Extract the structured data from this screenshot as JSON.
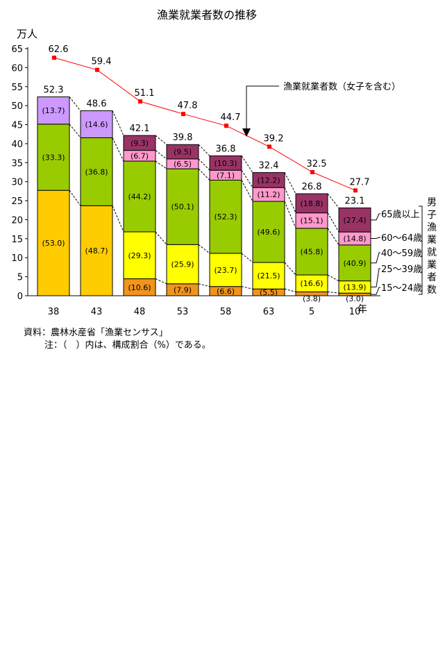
{
  "chart_data": {
    "type": "bar",
    "title": "漁業就業者数の推移",
    "ylabel": "万人",
    "xunit": "年",
    "ylim": [
      0,
      65
    ],
    "yticks": [
      0,
      5,
      10,
      15,
      20,
      25,
      30,
      35,
      40,
      45,
      50,
      55,
      60,
      65
    ],
    "categories": [
      "38",
      "43",
      "48",
      "53",
      "58",
      "63",
      "5",
      "10"
    ],
    "stack_totals": [
      "52.3",
      "48.6",
      "42.1",
      "39.8",
      "36.8",
      "32.4",
      "26.8",
      "23.1"
    ],
    "series": [
      {
        "name": "15～24歳",
        "color": "#f0941e",
        "values": [
          null,
          null,
          4.46,
          3.14,
          2.43,
          1.78,
          1.02,
          0.69
        ],
        "labels": [
          "",
          "",
          "(10.6)",
          "(7.9)",
          "(6.6)",
          "(5.5)",
          "(3.8)",
          "(3.0)"
        ]
      },
      {
        "name": "25～39歳",
        "color": "#ffff00",
        "values": [
          27.72,
          23.67,
          12.34,
          10.31,
          8.72,
          6.97,
          4.45,
          3.21
        ],
        "labels": [
          "(53.0)",
          "(48.7)",
          "(29.3)",
          "(25.9)",
          "(23.7)",
          "(21.5)",
          "(16.6)",
          "(13.9)"
        ]
      },
      {
        "name": "40～59歳",
        "color": "#99cc00",
        "values": [
          17.41,
          17.88,
          18.61,
          19.94,
          19.25,
          16.07,
          12.27,
          9.45
        ],
        "labels": [
          "(33.3)",
          "(36.8)",
          "(44.2)",
          "(50.1)",
          "(52.3)",
          "(49.6)",
          "(45.8)",
          "(40.9)"
        ]
      },
      {
        "name": "60～64歳",
        "color": "#ff99cc",
        "values": [
          null,
          null,
          2.82,
          2.59,
          2.61,
          3.63,
          4.05,
          3.42
        ],
        "labels": [
          "",
          "",
          "(6.7)",
          "(6.5)",
          "(7.1)",
          "(11.2)",
          "(15.1)",
          "(14.8)"
        ]
      },
      {
        "name": "65歳以上",
        "color": "#993366",
        "values": [
          7.17,
          7.1,
          3.92,
          3.78,
          3.79,
          3.95,
          5.04,
          6.33
        ],
        "labels": [
          "(13.7)",
          "(14.6)",
          "(9.3)",
          "(9.5)",
          "(10.3)",
          "(12.2)",
          "(18.8)",
          "(27.4)"
        ]
      }
    ],
    "first_bars_top_color": "#cc99ff",
    "first_bars_bottom_color": "#ffcc00",
    "line": {
      "name": "漁業就業者数（女子を含む）",
      "color": "#ff0000",
      "values": [
        62.6,
        59.4,
        51.1,
        47.8,
        44.7,
        39.2,
        32.5,
        27.7
      ],
      "labels": [
        "62.6",
        "59.4",
        "51.1",
        "47.8",
        "44.7",
        "39.2",
        "32.5",
        "27.7"
      ]
    },
    "right_axis_label": "男子漁業就業者数"
  },
  "source_note": "資料：農林水産省「漁業センサス」",
  "paren_note": "注：（　）内は、構成割合（%）である。"
}
